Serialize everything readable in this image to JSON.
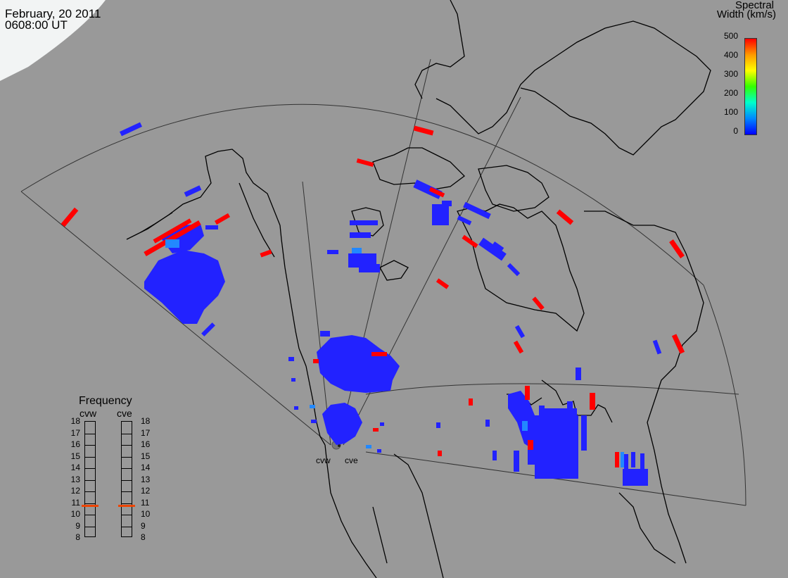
{
  "header": {
    "date": "February, 20 2011",
    "time": "0608:00 UT"
  },
  "colorbar": {
    "title_line1": "Spectral",
    "title_line2": "Width (km/s)",
    "ticks": [
      "500",
      "400",
      "300",
      "200",
      "100",
      "0"
    ],
    "gradient": [
      "#ff0000",
      "#ff9900",
      "#ffff00",
      "#33ff00",
      "#00ffcc",
      "#0088ff",
      "#0000ff"
    ]
  },
  "radars": {
    "west": "cvw",
    "east": "cve"
  },
  "frequency": {
    "title": "Frequency",
    "col_west": "cvw",
    "col_east": "cve",
    "scale_labels": [
      "18",
      "17",
      "16",
      "15",
      "14",
      "13",
      "12",
      "11",
      "10",
      "9",
      "8"
    ],
    "cvw_mhz": 10.7,
    "cve_mhz": 10.7,
    "marker_color": "#ee4400"
  },
  "colors": {
    "background": "#999999",
    "land": "#999999",
    "dawn_region": "#f2f4f4",
    "low_width": "#2222ff",
    "high_width": "#ff0000",
    "mid_width": "#2288ff"
  }
}
